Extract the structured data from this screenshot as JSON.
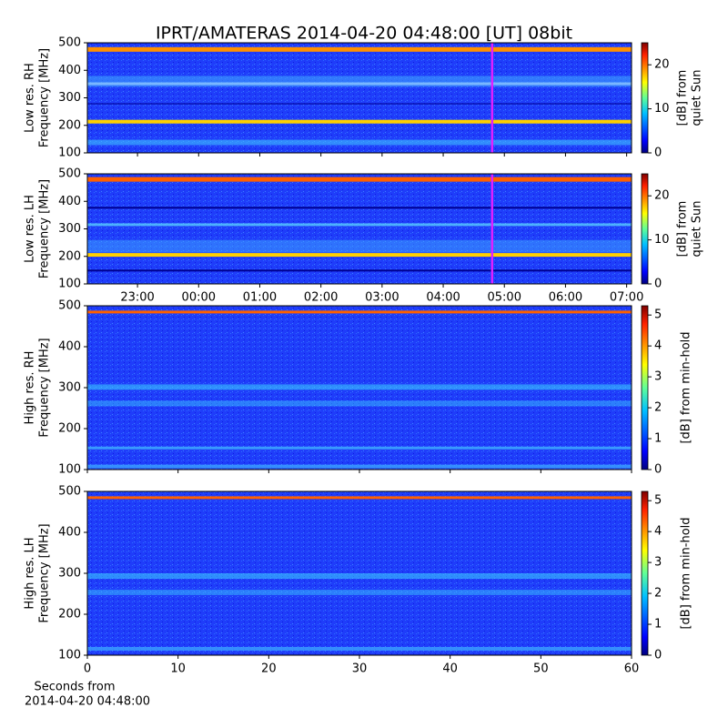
{
  "title": "IPRT/AMATERAS 2014-04-20 04:48:00 [UT]   08bit",
  "chart_data": [
    {
      "type": "spectrogram",
      "ylabel": [
        "Low res. RH",
        "Frequency [MHz]"
      ],
      "ylim": [
        100,
        500
      ],
      "yticks": [
        100,
        200,
        300,
        400,
        500
      ],
      "xlim": [
        -1.82,
        7.08
      ],
      "xticks": [
        -1,
        0,
        1,
        2,
        3,
        4,
        5,
        6,
        7
      ],
      "marker_x": 4.8,
      "marker_color": "#e020ff",
      "colorbar": {
        "label": [
          "[dB] from",
          "quiet Sun"
        ],
        "lim": [
          0,
          25
        ],
        "ticks": [
          0,
          10,
          20
        ]
      }
    },
    {
      "type": "spectrogram",
      "ylabel": [
        "Low res. LH",
        "Frequency [MHz]"
      ],
      "ylim": [
        100,
        500
      ],
      "yticks": [
        100,
        200,
        300,
        400,
        500
      ],
      "xlim": [
        -1.82,
        7.08
      ],
      "xticks": [
        {
          "value": -1,
          "label": "23:00"
        },
        {
          "value": 0,
          "label": "00:00"
        },
        {
          "value": 1,
          "label": "01:00"
        },
        {
          "value": 2,
          "label": "02:00"
        },
        {
          "value": 3,
          "label": "03:00"
        },
        {
          "value": 4,
          "label": "04:00"
        },
        {
          "value": 5,
          "label": "05:00"
        },
        {
          "value": 6,
          "label": "06:00"
        },
        {
          "value": 7,
          "label": "07:00"
        }
      ],
      "marker_x": 4.8,
      "marker_color": "#e020ff",
      "colorbar": {
        "label": [
          "[dB] from",
          "quiet Sun"
        ],
        "lim": [
          0,
          25
        ],
        "ticks": [
          0,
          10,
          20
        ]
      }
    },
    {
      "type": "spectrogram",
      "ylabel": [
        "High res. RH",
        "Frequency [MHz]"
      ],
      "ylim": [
        100,
        500
      ],
      "yticks": [
        100,
        200,
        300,
        400,
        500
      ],
      "xlim": [
        0,
        60
      ],
      "xticks": [
        0,
        10,
        20,
        30,
        40,
        50,
        60
      ],
      "colorbar": {
        "label": [
          "[dB] from min-hold"
        ],
        "lim": [
          0,
          5.3
        ],
        "ticks": [
          0,
          1,
          2,
          3,
          4,
          5
        ]
      }
    },
    {
      "type": "spectrogram",
      "ylabel": [
        "High res. LH",
        "Frequency [MHz]"
      ],
      "ylim": [
        100,
        500
      ],
      "yticks": [
        100,
        200,
        300,
        400,
        500
      ],
      "xlim": [
        0,
        60
      ],
      "xticks": [
        0,
        10,
        20,
        30,
        40,
        50,
        60
      ],
      "xlabel": [
        "Seconds from",
        "2014-04-20 04:48:00"
      ],
      "colorbar": {
        "label": [
          "[dB] from min-hold"
        ],
        "lim": [
          0,
          5.3
        ],
        "ticks": [
          0,
          1,
          2,
          3,
          4,
          5
        ]
      }
    }
  ]
}
